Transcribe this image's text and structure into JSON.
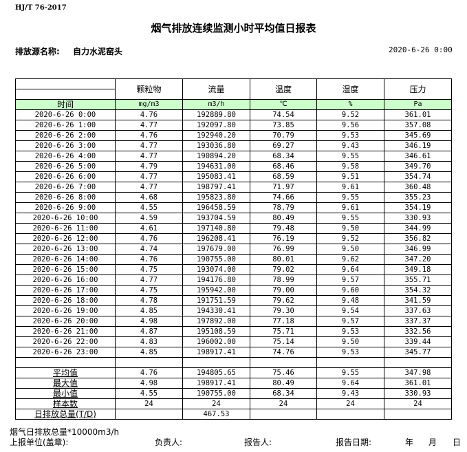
{
  "standard": "HJ/T  76-2017",
  "title": "烟气排放连续监测小时平均值日报表",
  "source_label": "排放源名称:",
  "source_name": "自力水泥窑头",
  "report_date": "2020-6-26 0:00",
  "columns": [
    "颗粒物",
    "流量",
    "温度",
    "湿度",
    "压力"
  ],
  "time_header": "时间",
  "units": [
    "mg/m3",
    "m3/h",
    "℃",
    "%",
    "Pa"
  ],
  "rows": [
    [
      "2020-6-26 0:00",
      "4.76",
      "192889.80",
      "74.54",
      "9.52",
      "361.01"
    ],
    [
      "2020-6-26 1:00",
      "4.77",
      "192097.80",
      "73.85",
      "9.56",
      "357.08"
    ],
    [
      "2020-6-26 2:00",
      "4.76",
      "192940.20",
      "70.79",
      "9.53",
      "345.69"
    ],
    [
      "2020-6-26 3:00",
      "4.77",
      "193036.80",
      "69.27",
      "9.43",
      "346.19"
    ],
    [
      "2020-6-26 4:00",
      "4.77",
      "190894.20",
      "68.34",
      "9.55",
      "346.61"
    ],
    [
      "2020-6-26 5:00",
      "4.79",
      "194631.00",
      "68.46",
      "9.58",
      "349.70"
    ],
    [
      "2020-6-26 6:00",
      "4.77",
      "195083.41",
      "68.59",
      "9.51",
      "354.74"
    ],
    [
      "2020-6-26 7:00",
      "4.77",
      "198797.41",
      "71.97",
      "9.61",
      "360.48"
    ],
    [
      "2020-6-26 8:00",
      "4.68",
      "195823.80",
      "74.66",
      "9.55",
      "355.23"
    ],
    [
      "2020-6-26 9:00",
      "4.55",
      "196458.59",
      "78.79",
      "9.61",
      "354.19"
    ],
    [
      "2020-6-26 10:00",
      "4.59",
      "193704.59",
      "80.49",
      "9.55",
      "330.93"
    ],
    [
      "2020-6-26 11:00",
      "4.61",
      "197140.80",
      "79.48",
      "9.50",
      "344.99"
    ],
    [
      "2020-6-26 12:00",
      "4.76",
      "196208.41",
      "76.19",
      "9.52",
      "356.82"
    ],
    [
      "2020-6-26 13:00",
      "4.74",
      "197679.00",
      "76.99",
      "9.50",
      "346.99"
    ],
    [
      "2020-6-26 14:00",
      "4.76",
      "190755.00",
      "80.01",
      "9.62",
      "347.20"
    ],
    [
      "2020-6-26 15:00",
      "4.75",
      "193074.00",
      "79.02",
      "9.64",
      "349.18"
    ],
    [
      "2020-6-26 16:00",
      "4.77",
      "194176.80",
      "78.99",
      "9.57",
      "355.71"
    ],
    [
      "2020-6-26 17:00",
      "4.75",
      "195942.00",
      "79.00",
      "9.60",
      "354.32"
    ],
    [
      "2020-6-26 18:00",
      "4.78",
      "191751.59",
      "79.62",
      "9.48",
      "341.59"
    ],
    [
      "2020-6-26 19:00",
      "4.85",
      "194330.41",
      "79.30",
      "9.54",
      "337.63"
    ],
    [
      "2020-6-26 20:00",
      "4.98",
      "197892.00",
      "77.18",
      "9.57",
      "337.37"
    ],
    [
      "2020-6-26 21:00",
      "4.87",
      "195108.59",
      "75.71",
      "9.53",
      "332.56"
    ],
    [
      "2020-6-26 22:00",
      "4.83",
      "196002.00",
      "75.14",
      "9.50",
      "339.44"
    ],
    [
      "2020-6-26 23:00",
      "4.85",
      "198917.41",
      "74.76",
      "9.53",
      "345.77"
    ]
  ],
  "stats": [
    [
      "平均值",
      "4.76",
      "194805.65",
      "75.46",
      "9.55",
      "347.98"
    ],
    [
      "最大值",
      "4.98",
      "198917.41",
      "80.49",
      "9.64",
      "361.01"
    ],
    [
      "最小值",
      "4.55",
      "190755.00",
      "68.34",
      "9.43",
      "330.93"
    ],
    [
      "样本数",
      "24",
      "24",
      "24",
      "24",
      "24"
    ],
    [
      "日排放总量(T/D)",
      "",
      "467.53",
      "",
      "",
      ""
    ]
  ],
  "footer": {
    "note": "烟气日排放总量*10000m3/h",
    "unit_label": "上报单位(盖章):",
    "responsible": "负责人:",
    "reporter": "报告人:",
    "report_date_label": "报告日期:",
    "year": "年",
    "month": "月",
    "day": "日"
  }
}
